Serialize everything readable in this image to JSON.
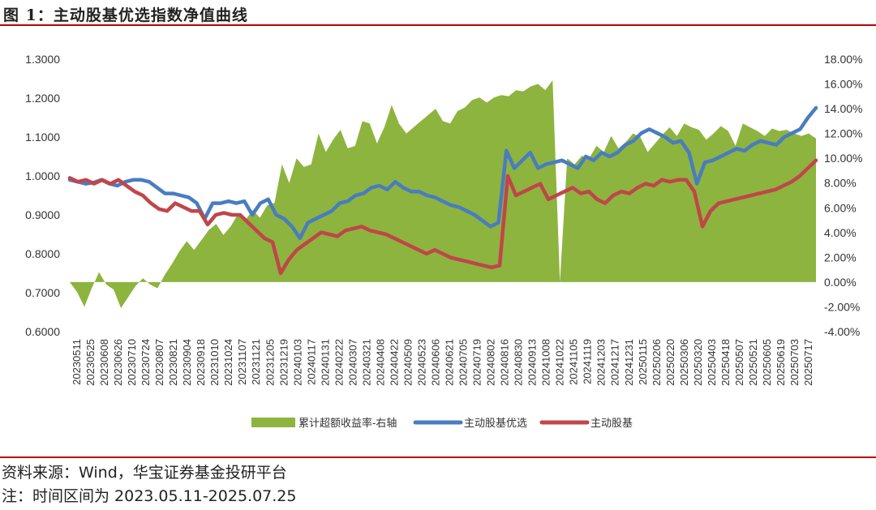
{
  "figure": {
    "title": "图 1：主动股基优选指数净值曲线",
    "source": "资料来源：Wind，华宝证券基金投研平台",
    "note": "注：时间区间为 2023.05.11-2025.07.25"
  },
  "colors": {
    "rule": "#c00000",
    "excess": "#8db43e",
    "select": "#4a7cc0",
    "base": "#c0464a",
    "axis_text": "#333333"
  },
  "chart_data": {
    "type": "line",
    "title": "",
    "left_axis": {
      "ylim": [
        0.6,
        1.3
      ],
      "ticks": [
        "0.6000",
        "0.7000",
        "0.8000",
        "0.9000",
        "1.0000",
        "1.1000",
        "1.2000",
        "1.3000"
      ]
    },
    "right_axis": {
      "ylim": [
        -4,
        18
      ],
      "ticks": [
        "-4.00%",
        "-2.00%",
        "0.00%",
        "2.00%",
        "4.00%",
        "6.00%",
        "8.00%",
        "10.00%",
        "12.00%",
        "14.00%",
        "16.00%",
        "18.00%"
      ]
    },
    "x_tick_labels": [
      "20230511",
      "20230525",
      "20230608",
      "20230626",
      "20230710",
      "20230724",
      "20230807",
      "20230821",
      "20230904",
      "20230918",
      "20231010",
      "20231024",
      "20231107",
      "20231121",
      "20231205",
      "20231219",
      "20240103",
      "20240117",
      "20240131",
      "20240222",
      "20240307",
      "20240321",
      "20240408",
      "20240422",
      "20240509",
      "20240523",
      "20240606",
      "20240621",
      "20240705",
      "20240719",
      "20240802",
      "20240816",
      "20240830",
      "20240913",
      "20241008",
      "20241022",
      "20241105",
      "20241119",
      "20241203",
      "20241217",
      "20241231",
      "20250115",
      "20250206",
      "20250220",
      "20250306",
      "20250320",
      "20250403",
      "20250418",
      "20250507",
      "20250521",
      "20250605",
      "20250619",
      "20250703",
      "20250717"
    ],
    "legend_position": "bottom-center",
    "grid": false,
    "series": [
      {
        "name": "累计超额收益率-右轴",
        "type": "area",
        "axis": "right",
        "values": [
          0.0,
          -0.8,
          -2.0,
          -0.5,
          0.8,
          -0.2,
          -0.6,
          -2.1,
          -1.2,
          -0.3,
          0.3,
          -0.2,
          -0.5,
          0.6,
          1.5,
          2.5,
          3.3,
          2.6,
          3.4,
          4.2,
          4.7,
          3.8,
          4.5,
          5.5,
          5.0,
          5.8,
          5.2,
          6.2,
          6.4,
          9.5,
          8.0,
          10.0,
          9.3,
          9.5,
          12.0,
          10.5,
          11.5,
          12.3,
          10.8,
          11.0,
          13.0,
          12.8,
          11.2,
          12.5,
          14.3,
          12.8,
          12.0,
          12.5,
          13.0,
          13.5,
          14.0,
          13.0,
          12.8,
          13.8,
          14.1,
          14.7,
          14.9,
          14.5,
          14.9,
          15.1,
          15.0,
          15.5,
          15.4,
          15.8,
          16.0,
          15.5,
          16.3,
          0.0,
          10.0,
          9.5,
          10.2,
          10.0,
          11.0,
          10.5,
          11.8,
          10.8,
          11.3,
          12.0,
          11.7,
          10.5,
          11.2,
          11.9,
          12.5,
          11.8,
          12.8,
          12.5,
          12.3,
          11.5,
          12.0,
          12.6,
          12.2,
          11.0,
          12.8,
          12.5,
          12.2,
          11.8,
          12.4,
          12.2,
          12.3,
          12.0,
          11.8,
          12.0,
          11.6
        ]
      },
      {
        "name": "主动股基优选",
        "type": "line",
        "axis": "left",
        "values": [
          0.99,
          0.985,
          0.98,
          0.983,
          0.99,
          0.98,
          0.975,
          0.985,
          0.99,
          0.99,
          0.985,
          0.97,
          0.955,
          0.955,
          0.95,
          0.945,
          0.93,
          0.89,
          0.93,
          0.93,
          0.935,
          0.93,
          0.935,
          0.9,
          0.93,
          0.94,
          0.9,
          0.89,
          0.87,
          0.84,
          0.88,
          0.89,
          0.9,
          0.91,
          0.93,
          0.935,
          0.95,
          0.955,
          0.97,
          0.975,
          0.965,
          0.985,
          0.97,
          0.96,
          0.96,
          0.95,
          0.945,
          0.935,
          0.925,
          0.92,
          0.91,
          0.9,
          0.885,
          0.87,
          0.88,
          1.065,
          1.02,
          1.04,
          1.06,
          1.02,
          1.03,
          1.035,
          1.04,
          1.03,
          1.02,
          1.05,
          1.04,
          1.06,
          1.05,
          1.06,
          1.08,
          1.09,
          1.11,
          1.12,
          1.11,
          1.1,
          1.085,
          1.09,
          1.06,
          0.98,
          1.035,
          1.04,
          1.05,
          1.06,
          1.07,
          1.065,
          1.08,
          1.09,
          1.085,
          1.08,
          1.1,
          1.11,
          1.12,
          1.15,
          1.175
        ]
      },
      {
        "name": "主动股基",
        "type": "line",
        "axis": "left",
        "values": [
          0.995,
          0.985,
          0.99,
          0.98,
          0.99,
          0.98,
          0.99,
          0.975,
          0.96,
          0.95,
          0.93,
          0.915,
          0.91,
          0.93,
          0.92,
          0.91,
          0.91,
          0.875,
          0.9,
          0.905,
          0.9,
          0.9,
          0.88,
          0.86,
          0.84,
          0.83,
          0.75,
          0.785,
          0.81,
          0.825,
          0.84,
          0.855,
          0.85,
          0.845,
          0.86,
          0.865,
          0.87,
          0.86,
          0.855,
          0.85,
          0.84,
          0.83,
          0.82,
          0.81,
          0.8,
          0.81,
          0.8,
          0.79,
          0.785,
          0.78,
          0.775,
          0.77,
          0.765,
          0.77,
          1.0,
          0.95,
          0.96,
          0.97,
          0.98,
          0.94,
          0.95,
          0.96,
          0.97,
          0.955,
          0.96,
          0.94,
          0.93,
          0.95,
          0.96,
          0.955,
          0.97,
          0.98,
          0.975,
          0.99,
          0.985,
          0.99,
          0.99,
          0.96,
          0.87,
          0.91,
          0.93,
          0.935,
          0.94,
          0.945,
          0.95,
          0.955,
          0.96,
          0.965,
          0.975,
          0.985,
          1.0,
          1.02,
          1.04
        ]
      }
    ]
  }
}
